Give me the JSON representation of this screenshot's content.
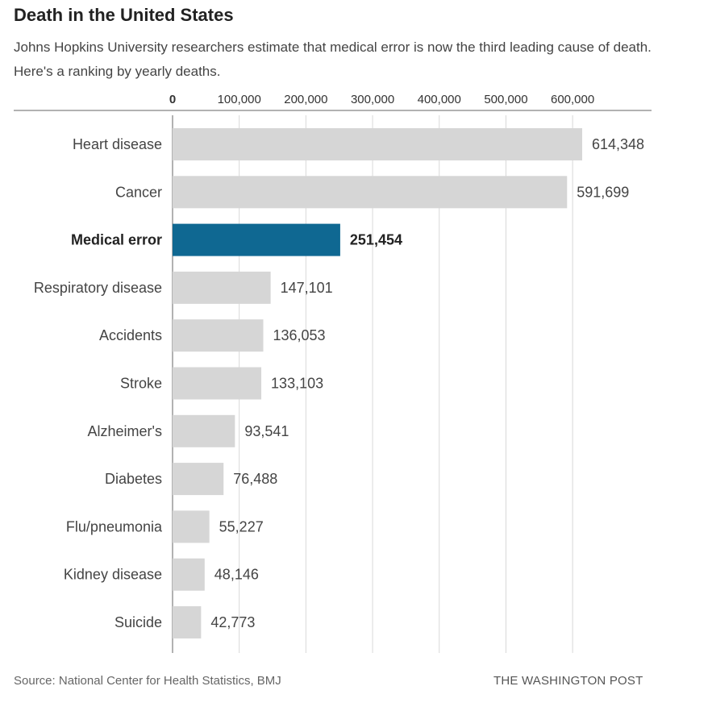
{
  "chart_data": {
    "type": "bar",
    "orientation": "horizontal",
    "title": "Death in the United States",
    "subtitle": "Johns Hopkins University researchers estimate that medical error is now the third leading cause of death. Here's a ranking by yearly deaths.",
    "categories": [
      "Heart disease",
      "Cancer",
      "Medical error",
      "Respiratory disease",
      "Accidents",
      "Stroke",
      "Alzheimer's",
      "Diabetes",
      "Flu/pneumonia",
      "Kidney disease",
      "Suicide"
    ],
    "values": [
      614348,
      591699,
      251454,
      147101,
      136053,
      133103,
      93541,
      76488,
      55227,
      48146,
      42773
    ],
    "value_labels": [
      "614,348",
      "591,699",
      "251,454",
      "147,101",
      "136,053",
      "133,103",
      "93,541",
      "76,488",
      "55,227",
      "48,146",
      "42,773"
    ],
    "highlight_category": "Medical error",
    "ticks": [
      0,
      100000,
      200000,
      300000,
      400000,
      500000,
      600000
    ],
    "tick_labels": [
      "0",
      "100,000",
      "200,000",
      "300,000",
      "400,000",
      "500,000",
      "600,000"
    ],
    "xlim": [
      0,
      700000
    ],
    "xlabel": "",
    "ylabel": "",
    "grid": true,
    "axis_position": "top"
  },
  "colors": {
    "bar": "#d6d6d6",
    "highlight": "#0f6892",
    "grid": "#d8d8d8",
    "axis": "#999999"
  },
  "footer": {
    "source": "Source: National Center for Health Statistics, BMJ",
    "brand": "THE WASHINGTON POST"
  }
}
